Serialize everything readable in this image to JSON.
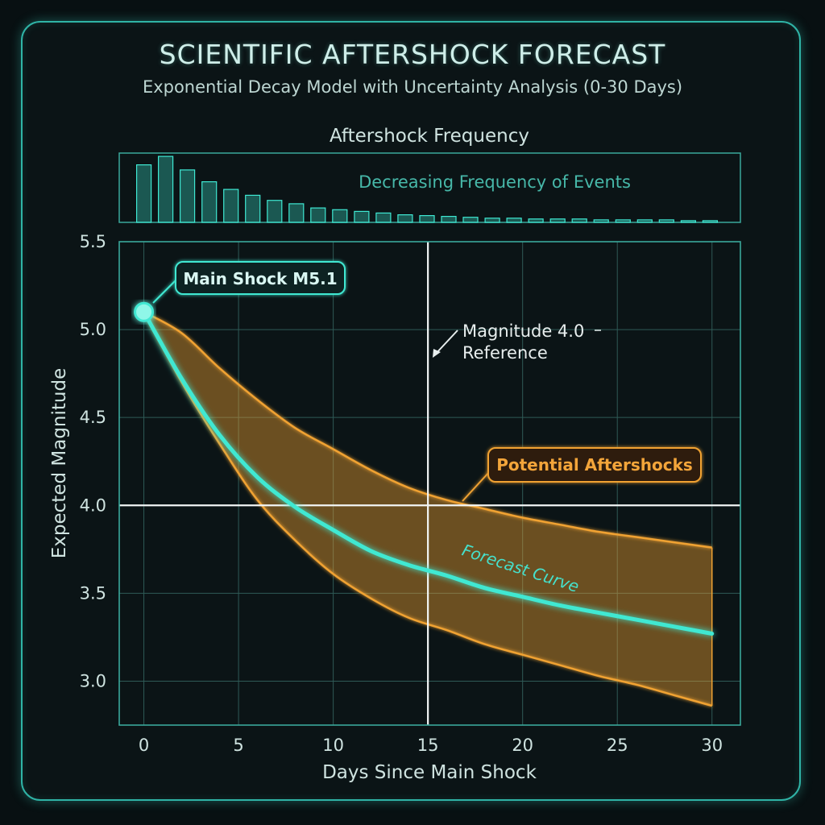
{
  "header": {
    "title": "SCIENTIFIC AFTERSHOCK FORECAST",
    "subtitle": "Exponential Decay Model with Uncertainty Analysis (0-30 Days)"
  },
  "colors": {
    "accent": "#3fe8d2",
    "band": "#f0a233",
    "grid": "#2f5a56",
    "frame": "#3aa89c",
    "text": "#cfe3e0"
  },
  "chart_data": [
    {
      "type": "bar",
      "title": "Aftershock Frequency",
      "annotation": "Decreasing Frequency of Events",
      "x": [
        0,
        1.15,
        2.3,
        3.45,
        4.6,
        5.75,
        6.9,
        8.05,
        9.2,
        10.35,
        11.5,
        12.65,
        13.8,
        14.95,
        16.1,
        17.25,
        18.4,
        19.55,
        20.7,
        21.85,
        23.0,
        24.15,
        25.3,
        26.45,
        27.6,
        28.75,
        29.9
      ],
      "values": [
        68,
        78,
        62,
        48,
        39,
        32,
        26,
        22,
        17,
        15,
        13,
        11,
        9,
        8,
        7,
        6,
        5,
        5,
        4,
        4,
        4,
        3,
        3,
        3,
        3,
        2,
        2
      ],
      "xlim": [
        -1.3,
        31.5
      ],
      "ylim": [
        0,
        80
      ]
    },
    {
      "type": "line",
      "xlabel": "Days Since Main Shock",
      "ylabel": "Expected Magnitude",
      "xlim": [
        -1.3,
        31.5
      ],
      "ylim": [
        2.75,
        5.5
      ],
      "xticks": [
        "0",
        "5",
        "10",
        "15",
        "20",
        "25",
        "30"
      ],
      "yticks": [
        "3.0",
        "3.5",
        "4.0",
        "4.5",
        "5.0",
        "5.5"
      ],
      "grid": true,
      "series": [
        {
          "name": "Forecast Curve",
          "x": [
            0,
            2,
            4,
            6,
            8,
            10,
            12,
            14,
            16,
            18,
            20,
            22,
            24,
            26,
            28,
            30
          ],
          "y": [
            5.1,
            4.72,
            4.4,
            4.16,
            3.99,
            3.86,
            3.74,
            3.66,
            3.6,
            3.53,
            3.48,
            3.43,
            3.39,
            3.35,
            3.31,
            3.27
          ]
        },
        {
          "name": "Potential Aftershocks",
          "type": "band",
          "x": [
            0,
            2,
            4,
            6,
            8,
            10,
            12,
            14,
            16,
            18,
            20,
            22,
            24,
            26,
            28,
            30
          ],
          "upper": [
            5.1,
            4.98,
            4.78,
            4.6,
            4.44,
            4.32,
            4.2,
            4.1,
            4.03,
            3.98,
            3.93,
            3.89,
            3.85,
            3.82,
            3.79,
            3.76
          ],
          "lower": [
            5.1,
            4.7,
            4.35,
            4.03,
            3.8,
            3.61,
            3.47,
            3.36,
            3.29,
            3.21,
            3.15,
            3.09,
            3.03,
            2.98,
            2.92,
            2.86
          ]
        }
      ],
      "reference_lines": [
        {
          "axis": "y",
          "value": 4.0
        },
        {
          "axis": "x",
          "value": 15
        }
      ],
      "annotations": {
        "main_shock": {
          "label": "Main Shock M5.1",
          "x": 0,
          "y": 5.1
        },
        "reference": {
          "line1": "Magnitude 4.0",
          "line2": "Reference"
        },
        "band_label": "Potential Aftershocks",
        "curve_label": "Forecast Curve"
      }
    }
  ]
}
